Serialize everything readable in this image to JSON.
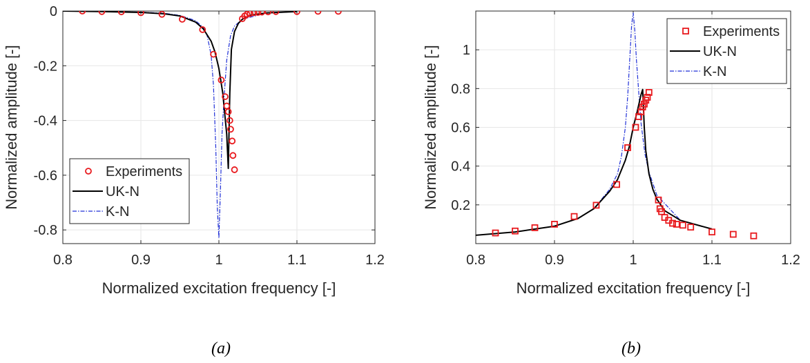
{
  "captions": {
    "a": "(a)",
    "b": "(b)"
  },
  "colors": {
    "experiments": "#e8191d",
    "uk_n": "#000000",
    "k_n": "#1f2fd6",
    "grid": "#e6e6e6",
    "axis": "#262626"
  },
  "chart_data": [
    {
      "type": "line",
      "xlabel": "Normalized excitation frequency [-]",
      "ylabel": "Normalized amplitude [-]",
      "xlim": [
        0.8,
        1.2
      ],
      "ylim": [
        -0.85,
        0
      ],
      "xticks": [
        0.8,
        0.9,
        1,
        1.1,
        1.2
      ],
      "xtick_labels": [
        "0.8",
        "0.9",
        "1",
        "1.1",
        "1.2"
      ],
      "yticks": [
        0,
        -0.2,
        -0.4,
        -0.6,
        -0.8
      ],
      "ytick_labels": [
        "0",
        "-0.2",
        "-0.4",
        "-0.6",
        "-0.8"
      ],
      "grid": true,
      "legend_placement": "bottom-left",
      "series": [
        {
          "name": "Experiments",
          "style": "circle-markers",
          "x": [
            0.825,
            0.85,
            0.875,
            0.9,
            0.927,
            0.953,
            0.979,
            0.993,
            1.003,
            1.008,
            1.01,
            1.012,
            1.014,
            1.015,
            1.017,
            1.018,
            1.02,
            1.03,
            1.033,
            1.036,
            1.04,
            1.045,
            1.05,
            1.055,
            1.063,
            1.073,
            1.1,
            1.127,
            1.153
          ],
          "y": [
            0,
            -0.002,
            -0.003,
            -0.006,
            -0.012,
            -0.03,
            -0.068,
            -0.158,
            -0.252,
            -0.313,
            -0.347,
            -0.368,
            -0.4,
            -0.432,
            -0.475,
            -0.528,
            -0.58,
            -0.028,
            -0.018,
            -0.012,
            -0.009,
            -0.006,
            -0.005,
            -0.004,
            -0.003,
            -0.002,
            -0.002,
            -0.001,
            -0.001
          ]
        },
        {
          "name": "UK-N",
          "style": "solid",
          "x": [
            0.8,
            0.85,
            0.9,
            0.93,
            0.95,
            0.97,
            0.98,
            0.99,
            0.995,
            1.0,
            1.005,
            1.01,
            1.012,
            1.014,
            1.016,
            1.02,
            1.025,
            1.03,
            1.04,
            1.06,
            1.1
          ],
          "y": [
            0,
            -0.002,
            -0.005,
            -0.01,
            -0.018,
            -0.04,
            -0.065,
            -0.11,
            -0.15,
            -0.21,
            -0.3,
            -0.45,
            -0.575,
            -0.3,
            -0.14,
            -0.075,
            -0.045,
            -0.03,
            -0.016,
            -0.007,
            -0.002
          ]
        },
        {
          "name": "K-N",
          "style": "dash-dot",
          "x": [
            0.8,
            0.85,
            0.9,
            0.93,
            0.95,
            0.97,
            0.98,
            0.985,
            0.99,
            0.993,
            0.996,
            0.998,
            1.0,
            1.002,
            1.004,
            1.007,
            1.01,
            1.015,
            1.02,
            1.03,
            1.06,
            1.1
          ],
          "y": [
            0,
            -0.002,
            -0.004,
            -0.008,
            -0.016,
            -0.035,
            -0.06,
            -0.09,
            -0.16,
            -0.27,
            -0.5,
            -0.72,
            -0.83,
            -0.65,
            -0.45,
            -0.3,
            -0.18,
            -0.09,
            -0.055,
            -0.03,
            -0.008,
            -0.002
          ]
        }
      ]
    },
    {
      "type": "line",
      "xlabel": "Normalized excitation frequency [-]",
      "ylabel": "Normalized amplitude [-]",
      "xlim": [
        0.8,
        1.2
      ],
      "ylim": [
        0,
        1.2
      ],
      "xticks": [
        0.8,
        0.9,
        1,
        1.1,
        1.2
      ],
      "xtick_labels": [
        "0.8",
        "0.9",
        "1",
        "1.1",
        "1.2"
      ],
      "yticks": [
        0.2,
        0.4,
        0.6,
        0.8,
        1
      ],
      "ytick_labels": [
        "0.2",
        "0.4",
        "0.6",
        "0.8",
        "1"
      ],
      "grid": true,
      "legend_placement": "top-right",
      "series": [
        {
          "name": "Experiments",
          "style": "square-markers",
          "x": [
            0.825,
            0.85,
            0.875,
            0.9,
            0.925,
            0.953,
            0.979,
            0.993,
            1.003,
            1.007,
            1.01,
            1.012,
            1.014,
            1.016,
            1.018,
            1.02,
            1.032,
            1.034,
            1.036,
            1.04,
            1.045,
            1.05,
            1.055,
            1.063,
            1.073,
            1.1,
            1.127,
            1.153
          ],
          "y": [
            0.055,
            0.065,
            0.082,
            0.1,
            0.14,
            0.198,
            0.305,
            0.495,
            0.6,
            0.655,
            0.68,
            0.705,
            0.72,
            0.74,
            0.755,
            0.78,
            0.225,
            0.18,
            0.165,
            0.135,
            0.12,
            0.105,
            0.1,
            0.095,
            0.085,
            0.06,
            0.048,
            0.04
          ]
        },
        {
          "name": "UK-N",
          "style": "solid",
          "x": [
            0.8,
            0.85,
            0.9,
            0.93,
            0.95,
            0.97,
            0.98,
            0.99,
            0.995,
            1.0,
            1.005,
            1.01,
            1.012,
            1.014,
            1.016,
            1.02,
            1.025,
            1.03,
            1.04,
            1.06,
            1.1
          ],
          "y": [
            0.043,
            0.06,
            0.09,
            0.13,
            0.18,
            0.27,
            0.33,
            0.43,
            0.5,
            0.6,
            0.68,
            0.77,
            0.795,
            0.6,
            0.48,
            0.36,
            0.28,
            0.23,
            0.17,
            0.12,
            0.075
          ]
        },
        {
          "name": "K-N",
          "style": "dash-dot",
          "x": [
            0.8,
            0.85,
            0.9,
            0.93,
            0.95,
            0.97,
            0.98,
            0.985,
            0.99,
            0.993,
            0.996,
            0.998,
            1.0,
            1.002,
            1.004,
            1.007,
            1.01,
            1.015,
            1.02,
            1.03,
            1.06,
            1.1
          ],
          "y": [
            0.043,
            0.06,
            0.09,
            0.13,
            0.18,
            0.28,
            0.36,
            0.45,
            0.6,
            0.76,
            0.98,
            1.13,
            1.19,
            1.1,
            0.95,
            0.78,
            0.62,
            0.46,
            0.37,
            0.25,
            0.12,
            0.075
          ]
        }
      ]
    }
  ]
}
